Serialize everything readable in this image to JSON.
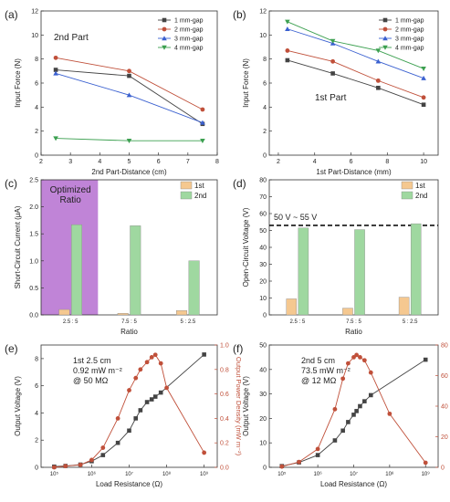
{
  "chart_data": [
    {
      "panel": "(a)",
      "type": "line",
      "annotation": "2nd Part",
      "xlabel": "2nd Part-Distance (cm)",
      "ylabel": "Input Force (N)",
      "xlim": [
        2,
        8
      ],
      "ylim": [
        0,
        12
      ],
      "xticks": [
        2,
        3,
        4,
        5,
        6,
        7,
        8
      ],
      "yticks": [
        0,
        2,
        4,
        6,
        8,
        10,
        12
      ],
      "legend_position": "top-right",
      "x": [
        2.5,
        5,
        7.5
      ],
      "series": [
        {
          "name": "1 mm-gap",
          "color": "#444444",
          "marker": "square",
          "values": [
            7.1,
            6.6,
            2.6
          ]
        },
        {
          "name": "2 mm-gap",
          "color": "#c0503a",
          "marker": "circle",
          "values": [
            8.1,
            7.0,
            3.8
          ]
        },
        {
          "name": "3 mm-gap",
          "color": "#3a60d0",
          "marker": "triangle-up",
          "values": [
            6.8,
            5.0,
            2.7
          ]
        },
        {
          "name": "4 mm-gap",
          "color": "#3ca050",
          "marker": "triangle-down",
          "values": [
            1.4,
            1.2,
            1.2
          ]
        }
      ]
    },
    {
      "panel": "(b)",
      "type": "line",
      "annotation": "1st Part",
      "xlabel": "1st Part-Distance (mm)",
      "ylabel": "Input Force (N)",
      "xlim": [
        1.5,
        10.8
      ],
      "ylim": [
        0,
        12
      ],
      "xticks": [
        2,
        4,
        6,
        8,
        10
      ],
      "yticks": [
        0,
        2,
        4,
        6,
        8,
        10,
        12
      ],
      "legend_position": "top-right",
      "x": [
        2.5,
        5,
        7.5,
        10
      ],
      "series": [
        {
          "name": "1 mm-gap",
          "color": "#444444",
          "marker": "square",
          "values": [
            7.9,
            6.8,
            5.6,
            4.2
          ]
        },
        {
          "name": "2 mm-gap",
          "color": "#c0503a",
          "marker": "circle",
          "values": [
            8.7,
            7.8,
            6.2,
            4.8
          ]
        },
        {
          "name": "3 mm-gap",
          "color": "#3a60d0",
          "marker": "triangle-up",
          "values": [
            10.5,
            9.3,
            7.8,
            6.4
          ]
        },
        {
          "name": "4 mm-gap",
          "color": "#3ca050",
          "marker": "triangle-down",
          "values": [
            11.1,
            9.5,
            8.7,
            7.2
          ]
        }
      ]
    },
    {
      "panel": "(c)",
      "type": "bar",
      "xlabel": "Ratio",
      "ylabel": "Short-Circuit Current (μA)",
      "ylim": [
        0,
        2.5
      ],
      "yticks": [
        "0.0",
        "0.5",
        "1.0",
        "1.5",
        "2.0",
        "2.5"
      ],
      "categories": [
        "2.5 : 5",
        "7.5 : 5",
        "5 : 2.5"
      ],
      "highlight": {
        "category": "2.5 : 5",
        "label_lines": [
          "Optimized",
          "Ratio"
        ],
        "color": "#b56fd0"
      },
      "legend_position": "top-right",
      "series": [
        {
          "name": "1st",
          "color": "#f5c890",
          "values": [
            0.1,
            0.03,
            0.08
          ]
        },
        {
          "name": "2nd",
          "color": "#9fd8a0",
          "values": [
            1.67,
            1.65,
            1.0
          ]
        }
      ]
    },
    {
      "panel": "(d)",
      "type": "bar",
      "xlabel": "Ratio",
      "ylabel": "Open-Circuit Voltage (V)",
      "ylim": [
        0,
        80
      ],
      "yticks": [
        0,
        10,
        20,
        30,
        40,
        50,
        60,
        70,
        80
      ],
      "categories": [
        "2.5 : 5",
        "7.5 : 5",
        "5 : 2.5"
      ],
      "reference": {
        "label": "50 V ~ 55 V",
        "value": 53
      },
      "legend_position": "top-right",
      "series": [
        {
          "name": "1st",
          "color": "#f5c890",
          "values": [
            9.5,
            4.0,
            10.5
          ]
        },
        {
          "name": "2nd",
          "color": "#9fd8a0",
          "values": [
            51.5,
            50.5,
            54.0
          ]
        }
      ]
    },
    {
      "panel": "(e)",
      "type": "line",
      "annotation_lines": [
        "1st 2.5 cm",
        "0.92 mW m⁻²",
        "@ 50 MΩ"
      ],
      "xlabel": "Load Resistance (Ω)",
      "ylabel": "Output Voltage (V)",
      "ylabel_right": "Output Power Density (mW m⁻²)",
      "xscale": "log",
      "xlim": [
        100000,
        1000000000
      ],
      "xticks": [
        100000,
        1000000,
        10000000,
        100000000,
        1000000000
      ],
      "xtick_labels": [
        "10⁵",
        "10⁶",
        "10⁷",
        "10⁸",
        "10⁹"
      ],
      "ylim": [
        0,
        9
      ],
      "yticks": [
        0,
        2,
        4,
        6,
        8
      ],
      "ylim_right": [
        0,
        1.0
      ],
      "yticks_right": [
        "0.0",
        "0.2",
        "0.4",
        "0.6",
        "0.8",
        "1.0"
      ],
      "series": [
        {
          "name": "Output Voltage",
          "axis": "left",
          "color": "#444444",
          "marker": "square",
          "x": [
            100000,
            200000,
            500000,
            1000000,
            2000000,
            5000000,
            10000000,
            15000000,
            20000000,
            30000000,
            40000000,
            50000000,
            70000000,
            1000000000
          ],
          "values": [
            0.05,
            0.1,
            0.2,
            0.45,
            0.9,
            1.8,
            2.7,
            3.6,
            4.2,
            4.8,
            5.0,
            5.2,
            5.5,
            8.3
          ]
        },
        {
          "name": "Output Power Density",
          "axis": "right",
          "color": "#c0503a",
          "marker": "circle",
          "x": [
            100000,
            200000,
            500000,
            1000000,
            2000000,
            5000000,
            10000000,
            15000000,
            20000000,
            30000000,
            40000000,
            50000000,
            70000000,
            100000000,
            1000000000
          ],
          "values": [
            0.0,
            0.01,
            0.02,
            0.06,
            0.16,
            0.4,
            0.63,
            0.73,
            0.8,
            0.86,
            0.9,
            0.92,
            0.85,
            0.65,
            0.12
          ]
        }
      ]
    },
    {
      "panel": "(f)",
      "type": "line",
      "annotation_lines": [
        "2nd 5 cm",
        "73.5 mW m⁻²",
        "@ 12 MΩ"
      ],
      "xlabel": "Load Resistance (Ω)",
      "ylabel": "Output Voltage (V)",
      "ylabel_right": "Output Power Density (mW m⁻²)",
      "xscale": "log",
      "xlim": [
        100000,
        1000000000
      ],
      "xticks": [
        100000,
        1000000,
        10000000,
        100000000,
        1000000000
      ],
      "xtick_labels": [
        "10⁵",
        "10⁶",
        "10⁷",
        "10⁸",
        "10⁹"
      ],
      "ylim": [
        0,
        50
      ],
      "yticks": [
        0,
        10,
        20,
        30,
        40,
        50
      ],
      "ylim_right": [
        0,
        80
      ],
      "yticks_right": [
        0,
        20,
        40,
        60,
        80
      ],
      "series": [
        {
          "name": "Output Voltage",
          "axis": "left",
          "color": "#444444",
          "marker": "square",
          "x": [
            100000,
            300000,
            1000000,
            3000000,
            5000000,
            7000000,
            10000000,
            12000000,
            15000000,
            20000000,
            30000000,
            1000000000
          ],
          "values": [
            0.5,
            2.0,
            5.0,
            11.0,
            15.0,
            18.5,
            21.5,
            23.0,
            25.0,
            27.0,
            29.5,
            44.0
          ]
        },
        {
          "name": "Output Power Density",
          "axis": "right",
          "color": "#c0503a",
          "marker": "circle",
          "x": [
            100000,
            300000,
            1000000,
            3000000,
            5000000,
            7000000,
            10000000,
            12000000,
            15000000,
            20000000,
            30000000,
            100000000,
            1000000000
          ],
          "values": [
            0.5,
            3.5,
            12.0,
            38.0,
            58.0,
            68.0,
            72.0,
            73.5,
            72.0,
            70.0,
            62.0,
            35.0,
            3.0
          ]
        }
      ]
    }
  ]
}
